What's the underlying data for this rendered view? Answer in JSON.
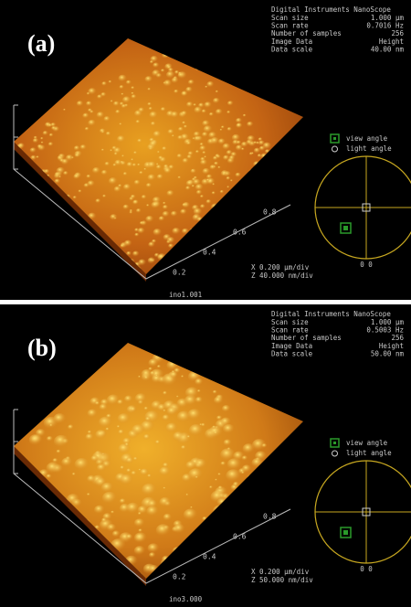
{
  "panels": [
    {
      "label": "(a)",
      "header": {
        "title": "Digital Instruments NanoScope",
        "rows": [
          [
            "Scan size",
            "1.000 µm"
          ],
          [
            "Scan rate",
            "0.7016 Hz"
          ],
          [
            "Number of samples",
            "256"
          ],
          [
            "Image Data",
            "Height"
          ],
          [
            "Data scale",
            "40.00 nm"
          ]
        ]
      },
      "legend": [
        "view angle",
        "light angle"
      ],
      "axis_ticks": [
        "0.8",
        "0.6",
        "0.4",
        "0.2"
      ],
      "origin": "0 0",
      "scale": [
        "X 0.200 µm/div",
        "Z 40.000 nm/div"
      ],
      "file": "ino1.001"
    },
    {
      "label": "(b)",
      "header": {
        "title": "Digital Instruments NanoScope",
        "rows": [
          [
            "Scan size",
            "1.000 µm"
          ],
          [
            "Scan rate",
            "0.5003 Hz"
          ],
          [
            "Number of samples",
            "256"
          ],
          [
            "Image Data",
            "Height"
          ],
          [
            "Data scale",
            "50.00 nm"
          ]
        ]
      },
      "legend": [
        "view angle",
        "light angle"
      ],
      "axis_ticks": [
        "0.8",
        "0.6",
        "0.4",
        "0.2"
      ],
      "origin": "0 0",
      "scale": [
        "X 0.200 µm/div",
        "Z 50.000 nm/div"
      ],
      "file": "ino3.000"
    }
  ]
}
